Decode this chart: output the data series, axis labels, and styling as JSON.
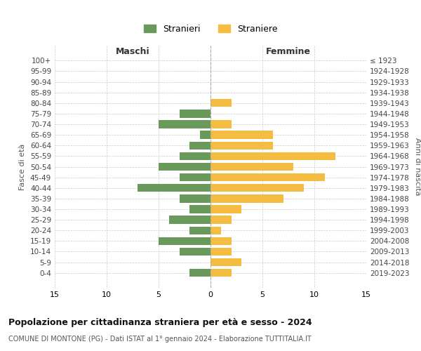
{
  "age_groups": [
    "100+",
    "95-99",
    "90-94",
    "85-89",
    "80-84",
    "75-79",
    "70-74",
    "65-69",
    "60-64",
    "55-59",
    "50-54",
    "45-49",
    "40-44",
    "35-39",
    "30-34",
    "25-29",
    "20-24",
    "15-19",
    "10-14",
    "5-9",
    "0-4"
  ],
  "birth_years": [
    "≤ 1923",
    "1924-1928",
    "1929-1933",
    "1934-1938",
    "1939-1943",
    "1944-1948",
    "1949-1953",
    "1954-1958",
    "1959-1963",
    "1964-1968",
    "1969-1973",
    "1974-1978",
    "1979-1983",
    "1984-1988",
    "1989-1993",
    "1994-1998",
    "1999-2003",
    "2004-2008",
    "2009-2013",
    "2014-2018",
    "2019-2023"
  ],
  "maschi": [
    0,
    0,
    0,
    0,
    0,
    3,
    5,
    1,
    2,
    3,
    5,
    3,
    7,
    3,
    2,
    4,
    2,
    5,
    3,
    0,
    2
  ],
  "femmine": [
    0,
    0,
    0,
    0,
    2,
    0,
    2,
    6,
    6,
    12,
    8,
    11,
    9,
    7,
    3,
    2,
    1,
    2,
    2,
    3,
    2
  ],
  "maschi_color": "#6a9a5b",
  "femmine_color": "#f5bc42",
  "background_color": "#ffffff",
  "grid_color": "#cccccc",
  "title": "Popolazione per cittadinanza straniera per età e sesso - 2024",
  "subtitle": "COMUNE DI MONTONE (PG) - Dati ISTAT al 1° gennaio 2024 - Elaborazione TUTTITALIA.IT",
  "legend_maschi": "Stranieri",
  "legend_femmine": "Straniere",
  "xlabel_left": "Maschi",
  "xlabel_right": "Femmine",
  "ylabel_left": "Fasce di età",
  "ylabel_right": "Anni di nascita",
  "xlim": 15
}
